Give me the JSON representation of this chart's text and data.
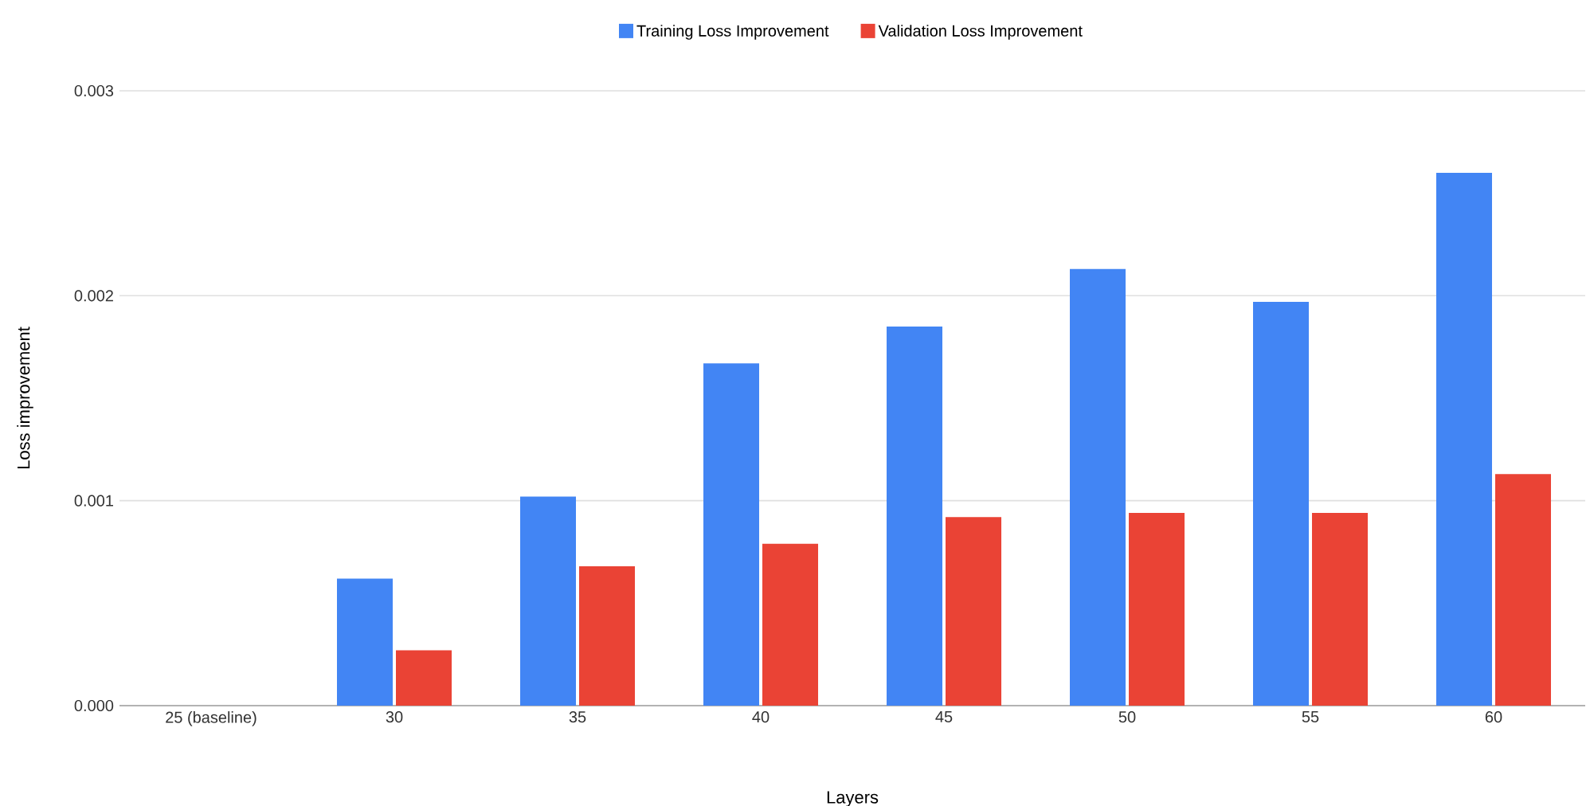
{
  "chart_data": {
    "type": "bar",
    "xlabel": "Layers",
    "ylabel": "Loss improvement",
    "categories": [
      "25 (baseline)",
      "30",
      "35",
      "40",
      "45",
      "50",
      "55",
      "60"
    ],
    "series": [
      {
        "name": "Training Loss Improvement",
        "color": "#4285f4",
        "values": [
          0,
          0.00062,
          0.00102,
          0.00167,
          0.00185,
          0.00213,
          0.00197,
          0.0026
        ]
      },
      {
        "name": "Validation Loss Improvement",
        "color": "#ea4335",
        "values": [
          0,
          0.00027,
          0.00068,
          0.00079,
          0.00092,
          0.00094,
          0.00094,
          0.00113
        ]
      }
    ],
    "ylim": [
      0,
      0.003
    ],
    "yticks": [
      {
        "value": 0,
        "label": "0.000"
      },
      {
        "value": 0.001,
        "label": "0.001"
      },
      {
        "value": 0.002,
        "label": "0.002"
      },
      {
        "value": 0.003,
        "label": "0.003"
      }
    ],
    "grid": "y",
    "legend": "top"
  }
}
